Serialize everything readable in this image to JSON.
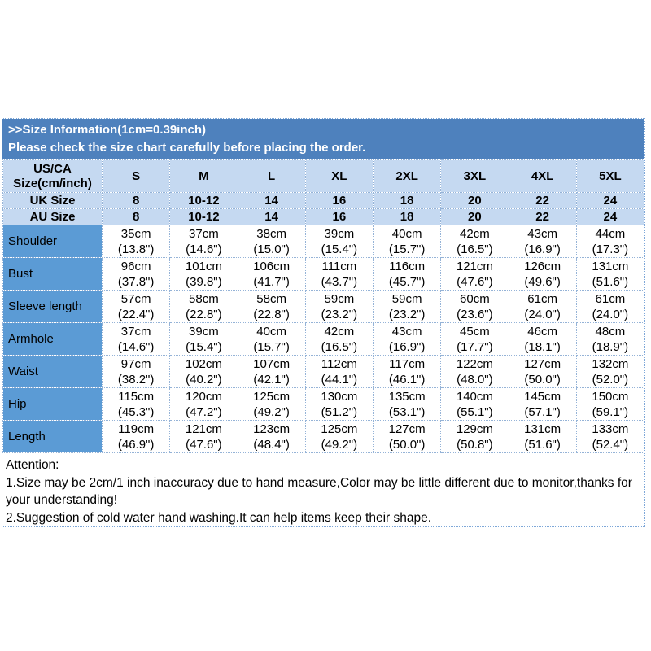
{
  "banner": {
    "line1": ">>Size Information(1cm=0.39inch)",
    "line2": "Please check the size chart carefully before placing the order."
  },
  "colors": {
    "banner_bg": "#4e81bd",
    "header_row_bg": "#c5d9f1",
    "label_column_bg": "#5b9bd5",
    "cell_border": "#95b3d7"
  },
  "table": {
    "corner_label_line1": "US/CA",
    "corner_label_line2": "Size(cm/inch)",
    "size_columns": [
      "S",
      "M",
      "L",
      "XL",
      "2XL",
      "3XL",
      "4XL",
      "5XL"
    ],
    "uk_row": {
      "label": "UK Size",
      "values": [
        "8",
        "10-12",
        "14",
        "16",
        "18",
        "20",
        "22",
        "24"
      ]
    },
    "au_row": {
      "label": "AU Size",
      "values": [
        "8",
        "10-12",
        "14",
        "16",
        "18",
        "20",
        "22",
        "24"
      ]
    },
    "measurement_rows": [
      {
        "label": "Shoulder",
        "cells": [
          {
            "cm": "35cm",
            "inch": "(13.8\")"
          },
          {
            "cm": "37cm",
            "inch": "(14.6\")"
          },
          {
            "cm": "38cm",
            "inch": "(15.0\")"
          },
          {
            "cm": "39cm",
            "inch": "(15.4\")"
          },
          {
            "cm": "40cm",
            "inch": "(15.7\")"
          },
          {
            "cm": "42cm",
            "inch": "(16.5\")"
          },
          {
            "cm": "43cm",
            "inch": "(16.9\")"
          },
          {
            "cm": "44cm",
            "inch": "(17.3\")"
          }
        ]
      },
      {
        "label": "Bust",
        "cells": [
          {
            "cm": "96cm",
            "inch": "(37.8\")"
          },
          {
            "cm": "101cm",
            "inch": "(39.8\")"
          },
          {
            "cm": "106cm",
            "inch": "(41.7\")"
          },
          {
            "cm": "111cm",
            "inch": "(43.7\")"
          },
          {
            "cm": "116cm",
            "inch": "(45.7\")"
          },
          {
            "cm": "121cm",
            "inch": "(47.6\")"
          },
          {
            "cm": "126cm",
            "inch": "(49.6\")"
          },
          {
            "cm": "131cm",
            "inch": "(51.6\")"
          }
        ]
      },
      {
        "label": "Sleeve length",
        "cells": [
          {
            "cm": "57cm",
            "inch": "(22.4\")"
          },
          {
            "cm": "58cm",
            "inch": "(22.8\")"
          },
          {
            "cm": "58cm",
            "inch": "(22.8\")"
          },
          {
            "cm": "59cm",
            "inch": "(23.2\")"
          },
          {
            "cm": "59cm",
            "inch": "(23.2\")"
          },
          {
            "cm": "60cm",
            "inch": "(23.6\")"
          },
          {
            "cm": "61cm",
            "inch": "(24.0\")"
          },
          {
            "cm": "61cm",
            "inch": "(24.0\")"
          }
        ]
      },
      {
        "label": "Armhole",
        "cells": [
          {
            "cm": "37cm",
            "inch": "(14.6\")"
          },
          {
            "cm": "39cm",
            "inch": "(15.4\")"
          },
          {
            "cm": "40cm",
            "inch": "(15.7\")"
          },
          {
            "cm": "42cm",
            "inch": "(16.5\")"
          },
          {
            "cm": "43cm",
            "inch": "(16.9\")"
          },
          {
            "cm": "45cm",
            "inch": "(17.7\")"
          },
          {
            "cm": "46cm",
            "inch": "(18.1\")"
          },
          {
            "cm": "48cm",
            "inch": "(18.9\")"
          }
        ]
      },
      {
        "label": "Waist",
        "cells": [
          {
            "cm": "97cm",
            "inch": "(38.2\")"
          },
          {
            "cm": "102cm",
            "inch": "(40.2\")"
          },
          {
            "cm": "107cm",
            "inch": "(42.1\")"
          },
          {
            "cm": "112cm",
            "inch": "(44.1\")"
          },
          {
            "cm": "117cm",
            "inch": "(46.1\")"
          },
          {
            "cm": "122cm",
            "inch": "(48.0\")"
          },
          {
            "cm": "127cm",
            "inch": "(50.0\")"
          },
          {
            "cm": "132cm",
            "inch": "(52.0\")"
          }
        ]
      },
      {
        "label": "Hip",
        "cells": [
          {
            "cm": "115cm",
            "inch": "(45.3\")"
          },
          {
            "cm": "120cm",
            "inch": "(47.2\")"
          },
          {
            "cm": "125cm",
            "inch": "(49.2\")"
          },
          {
            "cm": "130cm",
            "inch": "(51.2\")"
          },
          {
            "cm": "135cm",
            "inch": "(53.1\")"
          },
          {
            "cm": "140cm",
            "inch": "(55.1\")"
          },
          {
            "cm": "145cm",
            "inch": "(57.1\")"
          },
          {
            "cm": "150cm",
            "inch": "(59.1\")"
          }
        ]
      },
      {
        "label": "Length",
        "cells": [
          {
            "cm": "119cm",
            "inch": "(46.9\")"
          },
          {
            "cm": "121cm",
            "inch": "(47.6\")"
          },
          {
            "cm": "123cm",
            "inch": "(48.4\")"
          },
          {
            "cm": "125cm",
            "inch": "(49.2\")"
          },
          {
            "cm": "127cm",
            "inch": "(50.0\")"
          },
          {
            "cm": "129cm",
            "inch": "(50.8\")"
          },
          {
            "cm": "131cm",
            "inch": "(51.6\")"
          },
          {
            "cm": "133cm",
            "inch": "(52.4\")"
          }
        ]
      }
    ]
  },
  "attention": {
    "title": "Attention:",
    "note1": "1.Size may be 2cm/1 inch inaccuracy due to hand measure,Color may be little different due to monitor,thanks for your understanding!",
    "note2": "2.Suggestion of cold water hand washing.It can help items keep their shape."
  }
}
